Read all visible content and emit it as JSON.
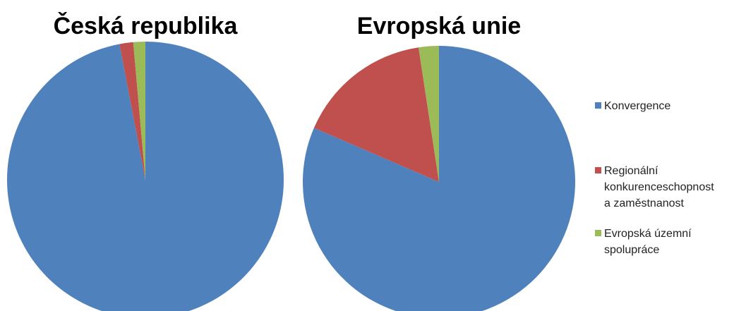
{
  "chart_data": [
    {
      "type": "pie",
      "title": "Česká republika",
      "categories": [
        "Konvergence",
        "Regionální konkurenceschopnost a zaměstnanost",
        "Evropská územní spolupráce"
      ],
      "values": [
        97,
        1.6,
        1.4
      ],
      "colors": [
        "#4f81bd",
        "#c0504d",
        "#9bbb59"
      ]
    },
    {
      "type": "pie",
      "title": "Evropská unie",
      "categories": [
        "Konvergence",
        "Regionální konkurenceschopnost a zaměstnanost",
        "Evropská územní spolupráce"
      ],
      "values": [
        81.5,
        16.1,
        2.4
      ],
      "colors": [
        "#4f81bd",
        "#c0504d",
        "#9bbb59"
      ]
    }
  ]
}
